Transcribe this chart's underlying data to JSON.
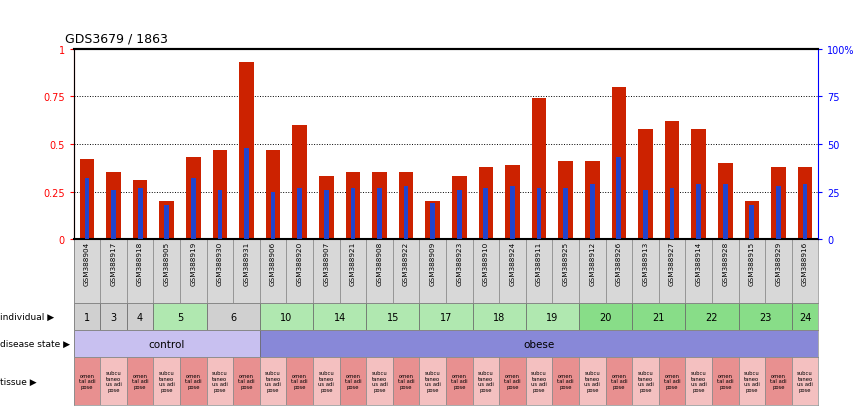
{
  "title": "GDS3679 / 1863",
  "samples": [
    "GSM388904",
    "GSM388917",
    "GSM388918",
    "GSM388905",
    "GSM388919",
    "GSM388930",
    "GSM388931",
    "GSM388906",
    "GSM388920",
    "GSM388907",
    "GSM388921",
    "GSM388908",
    "GSM388922",
    "GSM388909",
    "GSM388923",
    "GSM388910",
    "GSM388924",
    "GSM388911",
    "GSM388925",
    "GSM388912",
    "GSM388926",
    "GSM388913",
    "GSM388927",
    "GSM388914",
    "GSM388928",
    "GSM388915",
    "GSM388929",
    "GSM388916"
  ],
  "red_values": [
    0.42,
    0.35,
    0.31,
    0.2,
    0.43,
    0.47,
    0.93,
    0.47,
    0.6,
    0.33,
    0.35,
    0.35,
    0.35,
    0.2,
    0.33,
    0.38,
    0.39,
    0.74,
    0.41,
    0.41,
    0.8,
    0.58,
    0.62,
    0.58,
    0.4,
    0.2,
    0.38,
    0.38
  ],
  "blue_values": [
    0.32,
    0.26,
    0.27,
    0.18,
    0.32,
    0.26,
    0.48,
    0.25,
    0.27,
    0.26,
    0.27,
    0.27,
    0.28,
    0.19,
    0.26,
    0.27,
    0.28,
    0.27,
    0.27,
    0.29,
    0.43,
    0.26,
    0.27,
    0.29,
    0.29,
    0.18,
    0.28,
    0.29
  ],
  "individual_spans": [
    {
      "label": "1",
      "start": 0,
      "end": 1,
      "color": "#d0d0d0"
    },
    {
      "label": "3",
      "start": 1,
      "end": 2,
      "color": "#d0d0d0"
    },
    {
      "label": "4",
      "start": 2,
      "end": 3,
      "color": "#d0d0d0"
    },
    {
      "label": "5",
      "start": 3,
      "end": 5,
      "color": "#b0e8b0"
    },
    {
      "label": "6",
      "start": 5,
      "end": 7,
      "color": "#d0d0d0"
    },
    {
      "label": "10",
      "start": 7,
      "end": 9,
      "color": "#b0e8b0"
    },
    {
      "label": "14",
      "start": 9,
      "end": 11,
      "color": "#b0e8b0"
    },
    {
      "label": "15",
      "start": 11,
      "end": 13,
      "color": "#b0e8b0"
    },
    {
      "label": "17",
      "start": 13,
      "end": 15,
      "color": "#b0e8b0"
    },
    {
      "label": "18",
      "start": 15,
      "end": 17,
      "color": "#b0e8b0"
    },
    {
      "label": "19",
      "start": 17,
      "end": 19,
      "color": "#b0e8b0"
    },
    {
      "label": "20",
      "start": 19,
      "end": 21,
      "color": "#88dd88"
    },
    {
      "label": "21",
      "start": 21,
      "end": 23,
      "color": "#88dd88"
    },
    {
      "label": "22",
      "start": 23,
      "end": 25,
      "color": "#88dd88"
    },
    {
      "label": "23",
      "start": 25,
      "end": 27,
      "color": "#88dd88"
    },
    {
      "label": "24",
      "start": 27,
      "end": 28,
      "color": "#88dd88"
    }
  ],
  "disease_spans": [
    {
      "label": "control",
      "start": 0,
      "end": 7,
      "color": "#c8c0f0"
    },
    {
      "label": "obese",
      "start": 7,
      "end": 28,
      "color": "#8888d8"
    }
  ],
  "tissue_pairs": [
    [
      "omen\ntal adi\npose",
      "subcu\ntaneo\nus adi\npose"
    ],
    [
      "omen\ntal adi\npose",
      "subcu\ntaneo\nus adi\npose"
    ],
    [
      "omen\ntal adi\npose",
      "subcu\ntaneo\nus adi\npose"
    ],
    [
      "omen\ntal adi\npose",
      "subcu\ntaneo\nus adi\npose"
    ],
    [
      "omen\ntal adi\npose",
      "subcu\ntaneo\nus adi\npose"
    ],
    [
      "omen\ntal adi\npose",
      "subcu\ntaneo\nus adi\npose"
    ],
    [
      "omen\ntal adi\npose",
      "subcu\ntaneo\nus adi\npose"
    ],
    [
      "omen\ntal adi\npose",
      "subcu\ntaneo\nus adi\npose"
    ],
    [
      "omen\ntal adi\npose",
      "subcu\ntaneo\nus adi\npose"
    ],
    [
      "omen\ntal adi\npose",
      "subcu\ntaneo\nus adi\npose"
    ],
    [
      "omen\ntal adi\npose",
      "subcu\ntaneo\nus adi\npose"
    ],
    [
      "omen\ntal adi\npose",
      "subcu\ntaneo\nus adi\npose"
    ],
    [
      "omen\ntal adi\npose",
      "subcu\ntaneo\nus adi\npose"
    ],
    [
      "omen\ntal adi\npose",
      "subcu\ntaneo\nus adi\npose"
    ]
  ],
  "tissue_colors": [
    "#e89090",
    "#f4c0c0"
  ],
  "bar_color": "#cc2200",
  "blue_bar_color": "#2244cc",
  "bg_color": "#ffffff",
  "sample_bg": "#d8d8d8",
  "yticks": [
    0,
    0.25,
    0.5,
    0.75,
    1.0
  ],
  "ytick_labels_left": [
    "0",
    "0.25",
    "0.5",
    "0.75",
    "1"
  ],
  "ytick_labels_right": [
    "0",
    "25",
    "50",
    "75",
    "100%"
  ]
}
